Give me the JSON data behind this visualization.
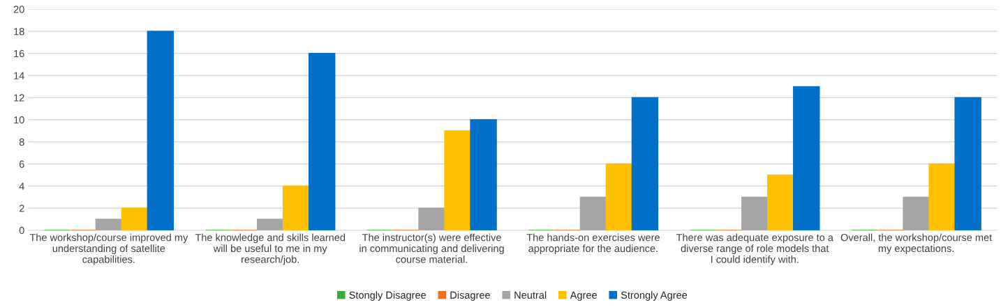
{
  "chart_data": {
    "type": "bar",
    "categories": [
      "The workshop/course improved my understanding of satellite capabilities.",
      "The knowledge and skills learned will be useful to me in my research/job.",
      "The instructor(s) were effective in communicating and delivering course material.",
      "The hands-on exercises were appropriate for the audience.",
      "There was adequate exposure to a diverse range of role models that I could identify with.",
      "Overall, the workshop/course met my expectations."
    ],
    "series": [
      {
        "name": "Stongly Disagree",
        "color": "#3aa935",
        "values": [
          0,
          0,
          0,
          0,
          0,
          0
        ]
      },
      {
        "name": "Disagree",
        "color": "#f2701e",
        "values": [
          0,
          0,
          0,
          0,
          0,
          0
        ]
      },
      {
        "name": "Neutral",
        "color": "#a5a5a5",
        "values": [
          1,
          1,
          2,
          3,
          3,
          3
        ]
      },
      {
        "name": "Agree",
        "color": "#ffc000",
        "values": [
          2,
          4,
          9,
          6,
          5,
          6
        ]
      },
      {
        "name": "Strongly Agree",
        "color": "#0070c8",
        "values": [
          18,
          16,
          10,
          12,
          13,
          12
        ]
      }
    ],
    "ylim": [
      0,
      20
    ],
    "yticks": [
      0,
      2,
      4,
      6,
      8,
      10,
      12,
      14,
      16,
      18,
      20
    ],
    "grid": "y",
    "legend": "bottom"
  }
}
